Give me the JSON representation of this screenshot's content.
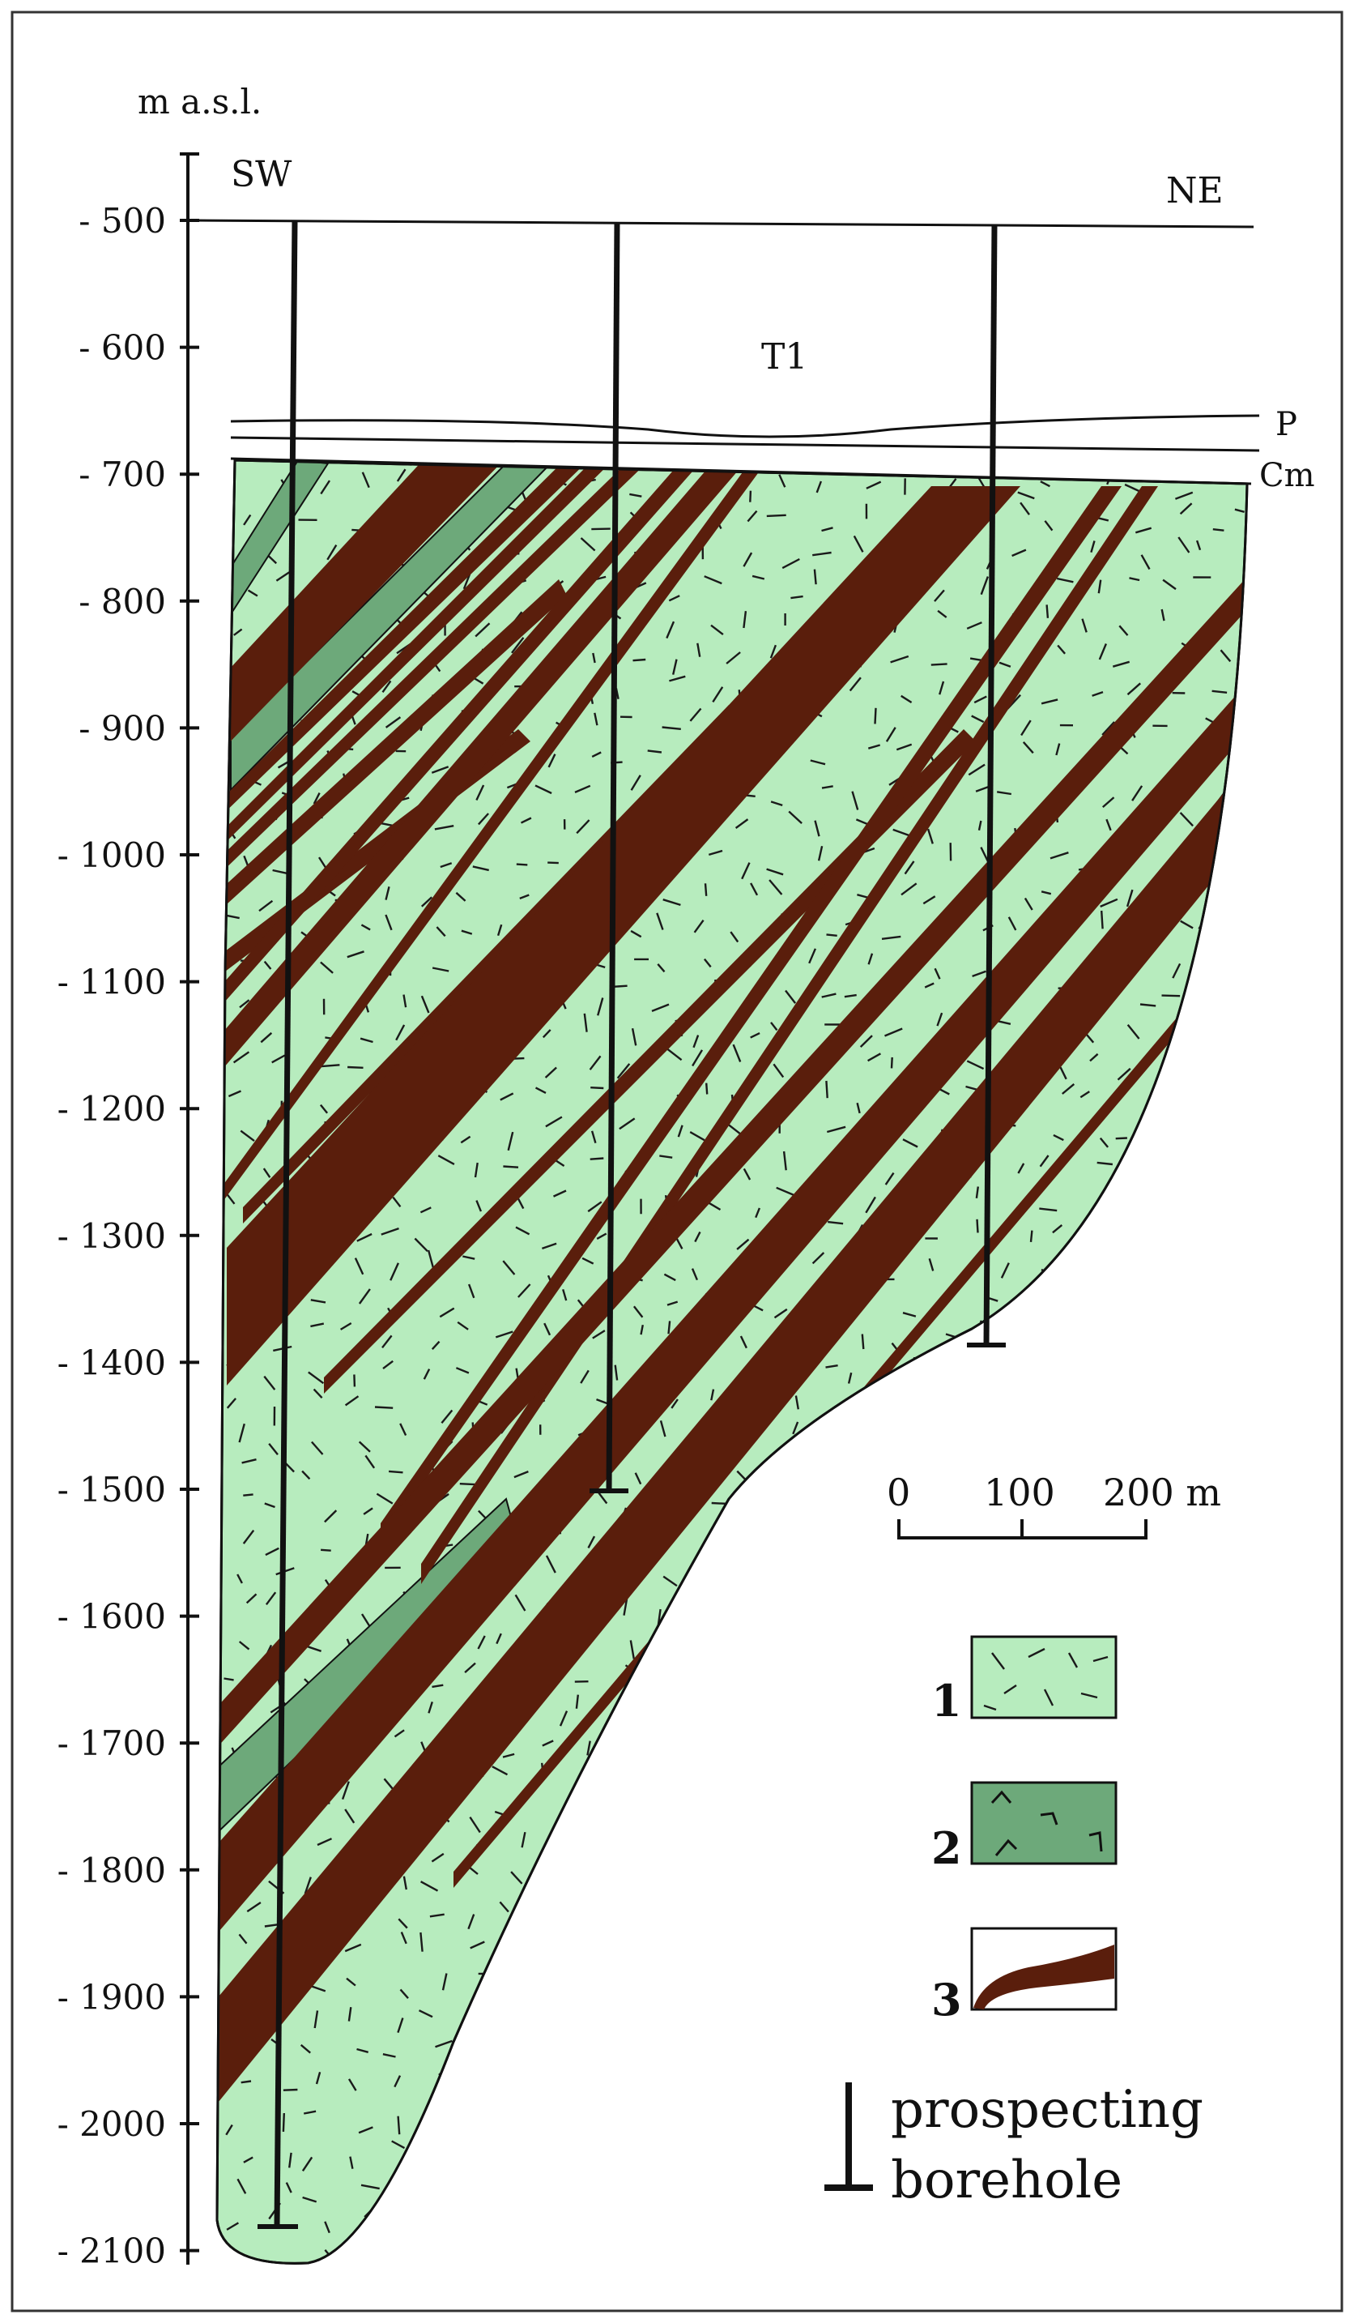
{
  "axis": {
    "unit_label": "m a.s.l.",
    "ticks": [
      -500,
      -600,
      -700,
      -800,
      -900,
      -1000,
      -1100,
      -1200,
      -1300,
      -1400,
      -1500,
      -1600,
      -1700,
      -1800,
      -1900,
      -2000,
      -2100
    ],
    "tick_labels": [
      "- 500",
      "- 600",
      "- 700",
      "- 800",
      "- 900",
      "- 1000",
      "- 1100",
      "- 1200",
      "- 1300",
      "- 1400",
      "- 1500",
      "- 1600",
      "- 1700",
      "- 1800",
      "- 1900",
      "- 2000",
      "- 2100"
    ]
  },
  "section": {
    "left_label": "SW",
    "right_label": "NE",
    "unit_t1": "T1",
    "unit_p": "P",
    "unit_cm": "Cm"
  },
  "boreholes": [
    {
      "name": "left",
      "bottom_m": -2085
    },
    {
      "name": "middle",
      "bottom_m": -1500
    },
    {
      "name": "right",
      "bottom_m": -1385
    }
  ],
  "scale_bar": {
    "labels": [
      "0",
      "100",
      "200 m"
    ]
  },
  "legend": {
    "items": [
      {
        "number": "1",
        "color": "#b7ecbe"
      },
      {
        "number": "2",
        "color": "#6da97a"
      },
      {
        "number": "3",
        "color": "#5a1e0c"
      }
    ],
    "borehole_text_1": "prospecting",
    "borehole_text_2": "borehole"
  },
  "colors": {
    "rock_light": "#b7ecbe",
    "rock_dark": "#6da97a",
    "coal": "#5a1e0c",
    "line": "#111111"
  }
}
